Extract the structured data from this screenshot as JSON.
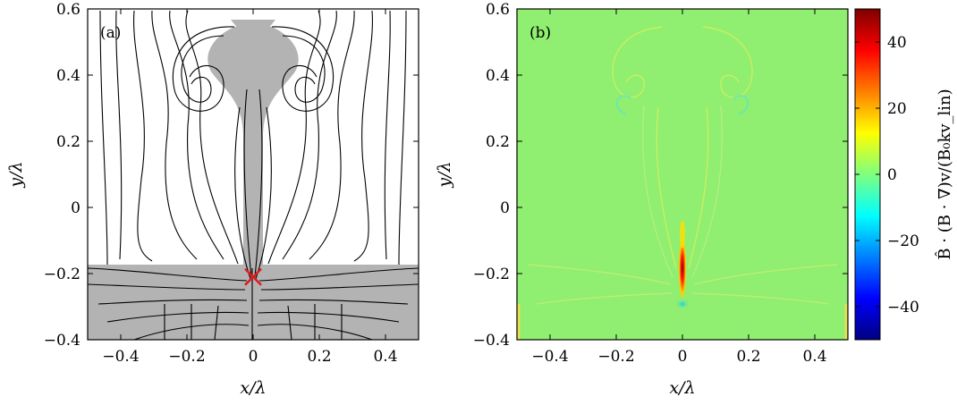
{
  "chart_data": [
    {
      "type": "contour",
      "panel_label": "(a)",
      "xlabel": "x/λ",
      "ylabel": "y/λ",
      "xlim": [
        -0.5,
        0.5
      ],
      "ylim": [
        -0.4,
        0.6
      ],
      "xticks": [
        -0.4,
        -0.2,
        0,
        0.2,
        0.4
      ],
      "xtick_labels": [
        "−0.4",
        "−0.2",
        "0",
        "0.2",
        "0.4"
      ],
      "yticks": [
        -0.4,
        -0.2,
        0,
        0.2,
        0.4,
        0.6
      ],
      "ytick_labels": [
        "−0.4",
        "−0.2",
        "0",
        "0.2",
        "0.4",
        "0.6"
      ],
      "marker": {
        "symbol": "x",
        "x": 0.0,
        "y": -0.21,
        "color": "#e3181a"
      },
      "colors": {
        "field_lines": "#000000",
        "shaded_region": "#b3b3b3"
      }
    },
    {
      "type": "heatmap",
      "panel_label": "(b)",
      "xlabel": "x/λ",
      "ylabel": "y/λ",
      "xlim": [
        -0.5,
        0.5
      ],
      "ylim": [
        -0.4,
        0.6
      ],
      "xticks": [
        -0.4,
        -0.2,
        0,
        0.2,
        0.4
      ],
      "xtick_labels": [
        "−0.4",
        "−0.2",
        "0",
        "0.2",
        "0.4"
      ],
      "yticks": [
        -0.4,
        -0.2,
        0,
        0.2,
        0.4,
        0.6
      ],
      "ytick_labels": [
        "−0.4",
        "−0.2",
        "0",
        "0.2",
        "0.4",
        "0.6"
      ],
      "colorbar": {
        "label": "B̂ · (B · ∇)v/(B₀kv_lin)",
        "range": [
          -50,
          50
        ],
        "ticks": [
          -40,
          -20,
          0,
          20,
          40
        ],
        "tick_labels": [
          "−40",
          "−20",
          "0",
          "20",
          "40"
        ],
        "colormap": [
          "#00007f",
          "#0000ff",
          "#007fff",
          "#00ffff",
          "#7fff7f",
          "#ffff00",
          "#ff7f00",
          "#ff0000",
          "#7f0000"
        ]
      },
      "background_value": 0,
      "features": [
        {
          "x": 0.0,
          "y_range": [
            -0.24,
            -0.08
          ],
          "value": 48
        },
        {
          "x": 0.0,
          "y": -0.33,
          "value": -15
        }
      ]
    }
  ]
}
